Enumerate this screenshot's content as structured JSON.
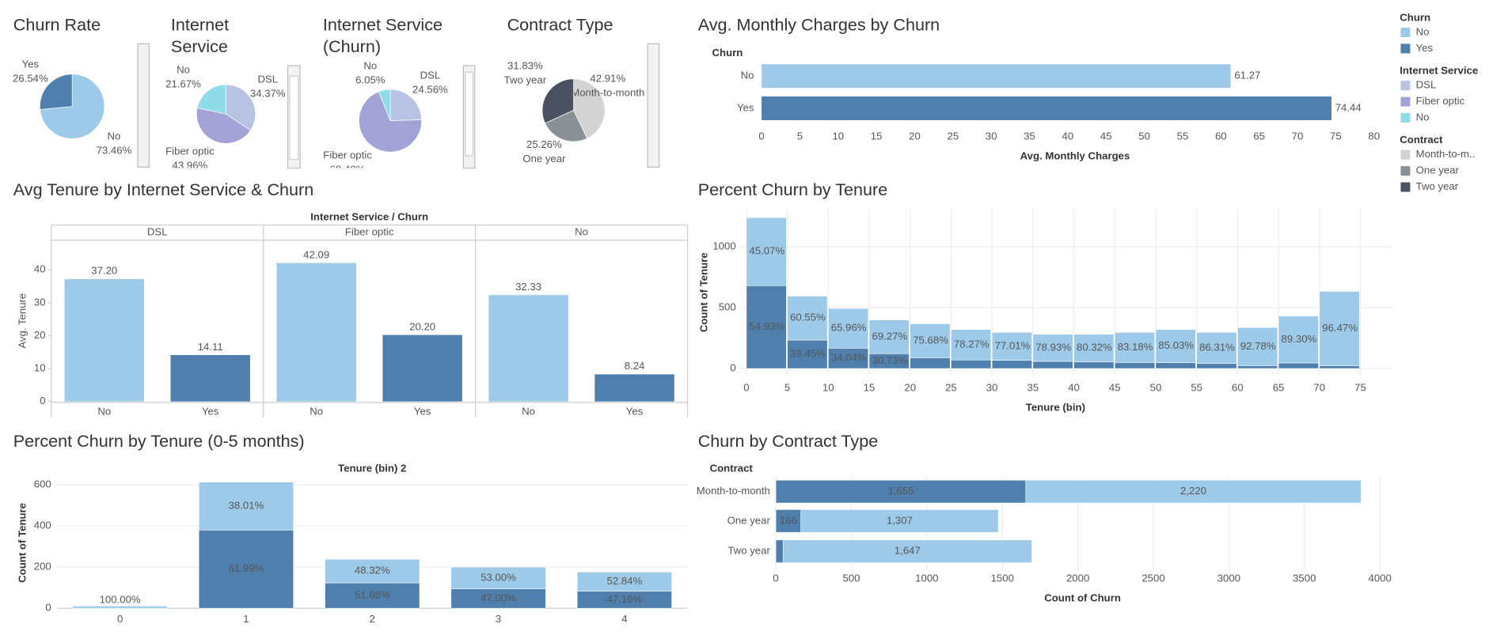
{
  "chart_data": [
    {
      "type": "pie",
      "title": [
        "Churn Rate"
      ],
      "categories": [
        "No",
        "Yes"
      ],
      "values": [
        73.46,
        26.54
      ],
      "value_labels": [
        "73.46%",
        "26.54%"
      ],
      "colors": [
        "#9ecae9",
        "#4e7fad"
      ]
    },
    {
      "type": "pie",
      "title": [
        "Internet",
        "Service"
      ],
      "categories": [
        "DSL",
        "Fiber optic",
        "No"
      ],
      "values": [
        34.37,
        43.96,
        21.67
      ],
      "value_labels": [
        "34.37%",
        "43.96%",
        "21.67%"
      ],
      "colors": [
        "#b8c3e3",
        "#a3a3d8",
        "#8fdbe8"
      ]
    },
    {
      "type": "pie",
      "title": [
        "Internet Service",
        "(Churn)"
      ],
      "categories": [
        "DSL",
        "Fiber optic",
        "No"
      ],
      "values": [
        24.56,
        69.4,
        6.05
      ],
      "value_labels": [
        "24.56%",
        "69.40%",
        "6.05%"
      ],
      "colors": [
        "#b8c3e3",
        "#a3a3d8",
        "#8fdbe8"
      ]
    },
    {
      "type": "pie",
      "title": [
        "Contract Type"
      ],
      "categories": [
        "Month-to-month",
        "One year",
        "Two year"
      ],
      "values": [
        42.91,
        25.26,
        31.83
      ],
      "value_labels": [
        "42.91%",
        "25.26%",
        "31.83%"
      ],
      "colors": [
        "#d3d3d3",
        "#8a9196",
        "#4a5160"
      ]
    },
    {
      "type": "bar",
      "orientation": "horizontal",
      "title": [
        "Avg. Monthly Charges by Churn"
      ],
      "category_header": "Churn",
      "categories": [
        "No",
        "Yes"
      ],
      "values": [
        61.27,
        74.44
      ],
      "colors": [
        "#9ecae9",
        "#4e7fad"
      ],
      "x_label": "Avg. Monthly Charges",
      "xlim": [
        0,
        82
      ],
      "xticks": [
        0,
        5,
        10,
        15,
        20,
        25,
        30,
        35,
        40,
        45,
        50,
        55,
        60,
        65,
        70,
        75,
        80
      ],
      "grid": false
    },
    {
      "type": "bar",
      "orientation": "vertical",
      "title": [
        "Avg Tenure by Internet Service & Churn"
      ],
      "panel_header": "Internet Service  /  Churn",
      "categories": [
        "No",
        "Yes"
      ],
      "colors": [
        "#9ecae9",
        "#4e7fad"
      ],
      "series": [
        {
          "name": "DSL",
          "values": [
            37.2,
            14.11
          ],
          "value_labels": [
            "37.20",
            "14.11"
          ]
        },
        {
          "name": "Fiber optic",
          "values": [
            42.09,
            20.2
          ],
          "value_labels": [
            "42.09",
            "20.20"
          ]
        },
        {
          "name": "No",
          "values": [
            32.33,
            8.24
          ],
          "value_labels": [
            "32.33",
            "8.24"
          ]
        }
      ],
      "y_label": "Avg. Tenure",
      "ylim": [
        0,
        49
      ],
      "yticks": [
        0,
        10,
        20,
        30,
        40
      ],
      "grid": false
    },
    {
      "type": "histogram",
      "title": [
        "Percent Churn by Tenure"
      ],
      "bins": [
        0,
        5,
        10,
        15,
        20,
        25,
        30,
        35,
        40,
        45,
        50,
        55,
        60,
        65,
        70,
        75
      ],
      "series": [
        {
          "name": "Yes",
          "color": "#4e7fad",
          "values": [
            680,
            234,
            167,
            122,
            89,
            70,
            68,
            59,
            55,
            50,
            48,
            41,
            24,
            46,
            22
          ],
          "percent_labels": [
            "54.93%",
            "39.45%",
            "34.04%",
            "30.73%",
            null,
            null,
            null,
            null,
            null,
            null,
            null,
            null,
            null,
            null,
            null
          ]
        },
        {
          "name": "No",
          "color": "#9ecae9",
          "values": [
            558,
            360,
            325,
            276,
            278,
            250,
            229,
            222,
            226,
            247,
            272,
            256,
            312,
            384,
            611
          ],
          "percent_labels": [
            "45.07%",
            "60.55%",
            "65.96%",
            "69.27%",
            "75.68%",
            "78.27%",
            "77.01%",
            "78.93%",
            "80.32%",
            "83.18%",
            "85.03%",
            "86.31%",
            "92.78%",
            "89.30%",
            "96.47%"
          ]
        }
      ],
      "x_label": "Tenure (bin)",
      "y_label": "Count of Tenure",
      "xlim": [
        0,
        79
      ],
      "xticks": [
        0,
        5,
        10,
        15,
        20,
        25,
        30,
        35,
        40,
        45,
        50,
        55,
        60,
        65,
        70,
        75
      ],
      "ylim": [
        -60,
        1310
      ],
      "yticks": [
        0,
        500,
        1000
      ],
      "grid": true
    },
    {
      "type": "stacked_bar",
      "orientation": "vertical",
      "title": [
        "Percent Churn by Tenure (0-5 months)"
      ],
      "category_header": "Tenure (bin) 2",
      "categories": [
        "0",
        "1",
        "2",
        "3",
        "4"
      ],
      "series": [
        {
          "name": "Yes",
          "color": "#4e7fad",
          "values": [
            0,
            380,
            123,
            94,
            83
          ],
          "percent_labels": [
            null,
            "61.99%",
            "51.68%",
            "47.00%",
            "47.16%"
          ]
        },
        {
          "name": "No",
          "color": "#9ecae9",
          "values": [
            11,
            233,
            115,
            106,
            93
          ],
          "percent_labels": [
            "100.00%",
            "38.01%",
            "48.32%",
            "53.00%",
            "52.84%"
          ]
        }
      ],
      "y_label": "Count of Tenure",
      "ylim": [
        0,
        636
      ],
      "yticks": [
        0,
        200,
        400,
        600
      ],
      "grid": true
    },
    {
      "type": "stacked_bar",
      "orientation": "horizontal",
      "title": [
        "Churn by Contract Type"
      ],
      "category_header": "Contract",
      "categories": [
        "Month-to-month",
        "One year",
        "Two year"
      ],
      "series": [
        {
          "name": "Yes",
          "color": "#4e7fad",
          "values": [
            1655,
            166,
            48
          ],
          "value_labels": [
            "1,655",
            "166",
            null
          ]
        },
        {
          "name": "No",
          "color": "#9ecae9",
          "values": [
            2220,
            1307,
            1647
          ],
          "value_labels": [
            "2,220",
            "1,307",
            "1,647"
          ]
        }
      ],
      "x_label": "Count of Churn",
      "xlim": [
        0,
        4100
      ],
      "xticks": [
        0,
        500,
        1000,
        1500,
        2000,
        2500,
        3000,
        3500,
        4000
      ],
      "grid": true
    }
  ],
  "legends": [
    {
      "title": "Churn",
      "items": [
        {
          "label": "No",
          "color": "#9ecae9"
        },
        {
          "label": "Yes",
          "color": "#4e7fad"
        }
      ]
    },
    {
      "title": "Internet Service",
      "items": [
        {
          "label": "DSL",
          "color": "#b8c3e3"
        },
        {
          "label": "Fiber optic",
          "color": "#a3a3d8"
        },
        {
          "label": "No",
          "color": "#8fdbe8"
        }
      ]
    },
    {
      "title": "Contract",
      "items": [
        {
          "label": "Month-to-m..",
          "color": "#d3d3d3"
        },
        {
          "label": "One year",
          "color": "#8a9196"
        },
        {
          "label": "Two year",
          "color": "#4a5160"
        }
      ]
    }
  ]
}
